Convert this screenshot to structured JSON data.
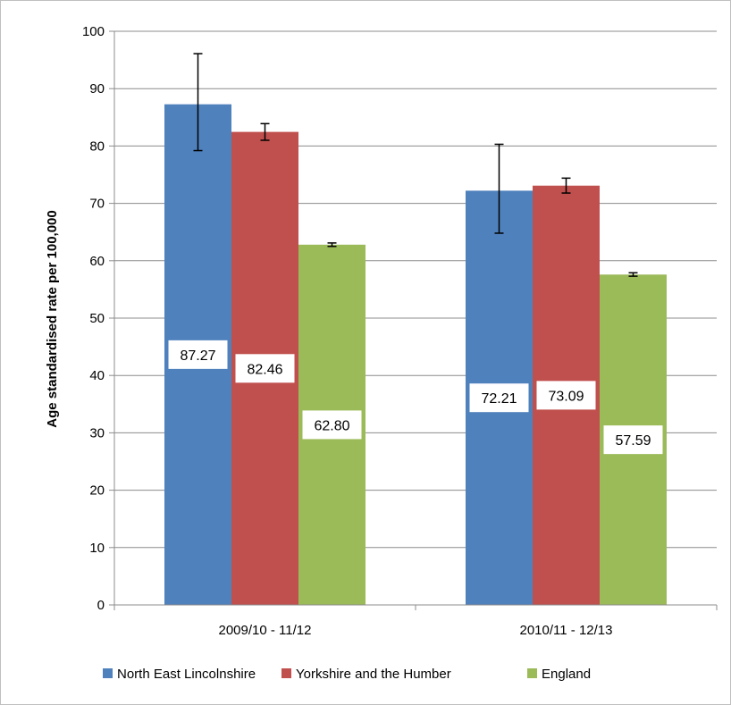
{
  "chart_data": {
    "type": "bar",
    "title": "",
    "xlabel": "",
    "ylabel": "Age standardised rate per 100,000",
    "ylim": [
      0,
      100
    ],
    "yticks": [
      0,
      10,
      20,
      30,
      40,
      50,
      60,
      70,
      80,
      90,
      100
    ],
    "grid": true,
    "legend_position": "bottom",
    "categories": [
      "2009/10 - 11/12",
      "2010/11 - 12/13"
    ],
    "series": [
      {
        "name": "North East Lincolnshire",
        "color": "#4f81bd",
        "values": [
          87.27,
          72.21
        ],
        "labels": [
          "87.27",
          "72.21"
        ],
        "error_low": [
          79.2,
          64.8
        ],
        "error_high": [
          96.1,
          80.3
        ]
      },
      {
        "name": "Yorkshire and the Humber",
        "color": "#c0504d",
        "values": [
          82.46,
          73.09
        ],
        "labels": [
          "82.46",
          "73.09"
        ],
        "error_low": [
          81.0,
          71.8
        ],
        "error_high": [
          83.9,
          74.4
        ]
      },
      {
        "name": "England",
        "color": "#9bbb59",
        "values": [
          62.8,
          57.59
        ],
        "labels": [
          "62.80",
          "57.59"
        ],
        "error_low": [
          62.5,
          57.3
        ],
        "error_high": [
          63.1,
          57.9
        ]
      }
    ]
  }
}
